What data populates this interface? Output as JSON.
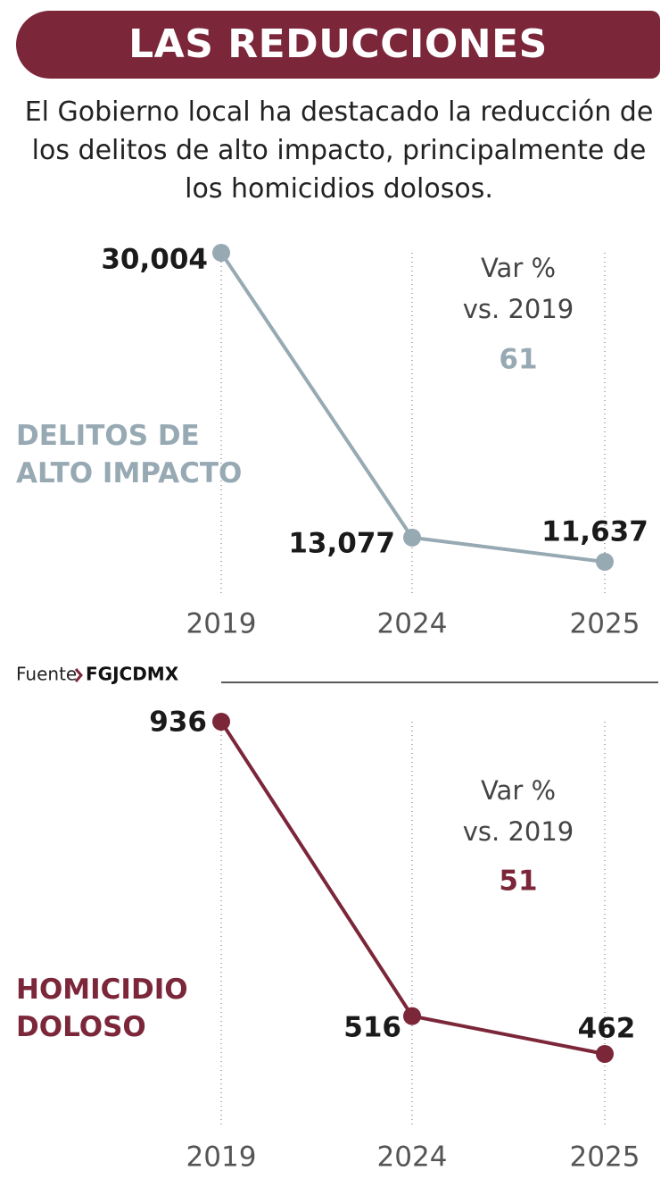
{
  "title": "LAS REDUCCIONES",
  "subtitle": "El Gobierno local ha destacado la reducción de los delitos de alto impacto, principalmente de los homicidios dolosos.",
  "source_label": "Fuente",
  "source": "FGJCDMX",
  "chart_data": [
    {
      "type": "line",
      "categories": [
        "2019",
        "2024",
        "2025"
      ],
      "series": [
        {
          "name": "DELITOS DE ALTO IMPACTO",
          "color": "#97a9b3",
          "values": [
            30004,
            13077,
            11637
          ],
          "value_labels": [
            "30,004",
            "13,077",
            "11,637"
          ]
        }
      ],
      "annotation_lines": [
        "Var %",
        "vs. 2019"
      ],
      "change": 61
    },
    {
      "type": "line",
      "categories": [
        "2019",
        "2024",
        "2025"
      ],
      "series": [
        {
          "name": "HOMICIDIO DOLOSO",
          "color": "#7b2639",
          "values": [
            936,
            516,
            462
          ]
        }
      ],
      "annotation_lines": [
        "Var %",
        "vs. 2019"
      ],
      "change": 51
    }
  ]
}
